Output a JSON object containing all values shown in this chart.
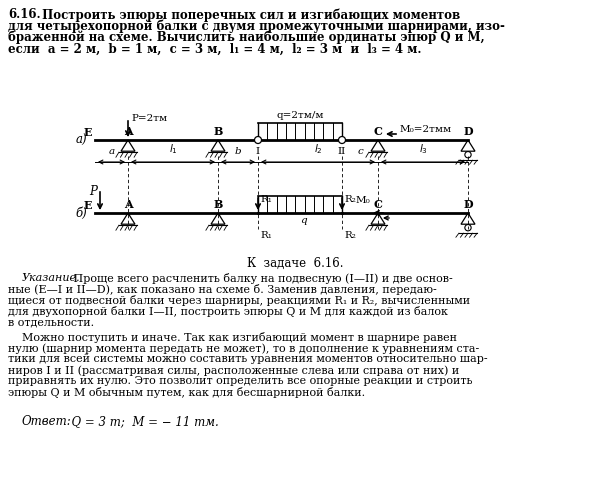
{
  "bg_color": "#ffffff",
  "text_color": "#000000",
  "title_num": "6.16.",
  "title_rest": " Построить эпюры поперечных сил и изгибающих моментов",
  "title_line2": "для четырехопорной балки с двумя промежуточными шарнирами, изо-",
  "title_line3": "браженной на схеме. Вычислить наибольшие ординаты эпюр Q и M,",
  "title_line4": "если  a = 2 м,  b = 1 м,  c = 3 м,  l₁ = 4 м,  l₂ = 3 м  и  l₃ = 4 м.",
  "caption": "К  задаче  6.16.",
  "par1_italic": "Указание.",
  "par1_normal": " Проще всего расчленить балку на подвесную (I—II) и две основ-",
  "par1_l2": "ные (E—I и II—D), как показано на схеме б. Заменив давления, передаю-",
  "par1_l3": "щиеся от подвесной балки через шарниры, реакциями R₁ и R₂, вычисленными",
  "par1_l4": "для двухопорной балки I—II, построить эпюры Q и M для каждой из балок",
  "par1_l5": "в отдельности.",
  "par2_l1": "Можно поступить и иначе. Так как изгибающий момент в шарнире равен",
  "par2_l2": "нулю (шарнир момента передать не может), то в дополнение к уравнениям ста-",
  "par2_l3": "тики для всей системы можно составить уравнения моментов относительно шар-",
  "par2_l4": "ниров I и II (рассматривая силы, расположенные слева или справа от них) и",
  "par2_l5": "приравнять их нулю. Это позволит определить все опорные реакции и строить",
  "par2_l6": "эпюры Q и M обычным путем, как для бесшарнирной балки.",
  "answer_italic": "Ответ:",
  "answer_normal": "  Q = 3 т;  M = − 11 тм.",
  "label_a": "а)",
  "label_b": "б)",
  "label_E": "E",
  "label_A": "A",
  "label_B": "B",
  "label_C": "C",
  "label_D": "D",
  "label_I": "I",
  "label_II": "II",
  "label_P": "P=2тм",
  "label_q": "q=2тм/м",
  "label_M0": "M₀=2тмм",
  "label_P_b": "P",
  "label_R1_top": "R₁",
  "label_R2_top": "R₂",
  "label_R1_bot": "R₁",
  "label_R2_bot": "R₂",
  "label_M0_b": "M₀",
  "label_q_b": "q"
}
